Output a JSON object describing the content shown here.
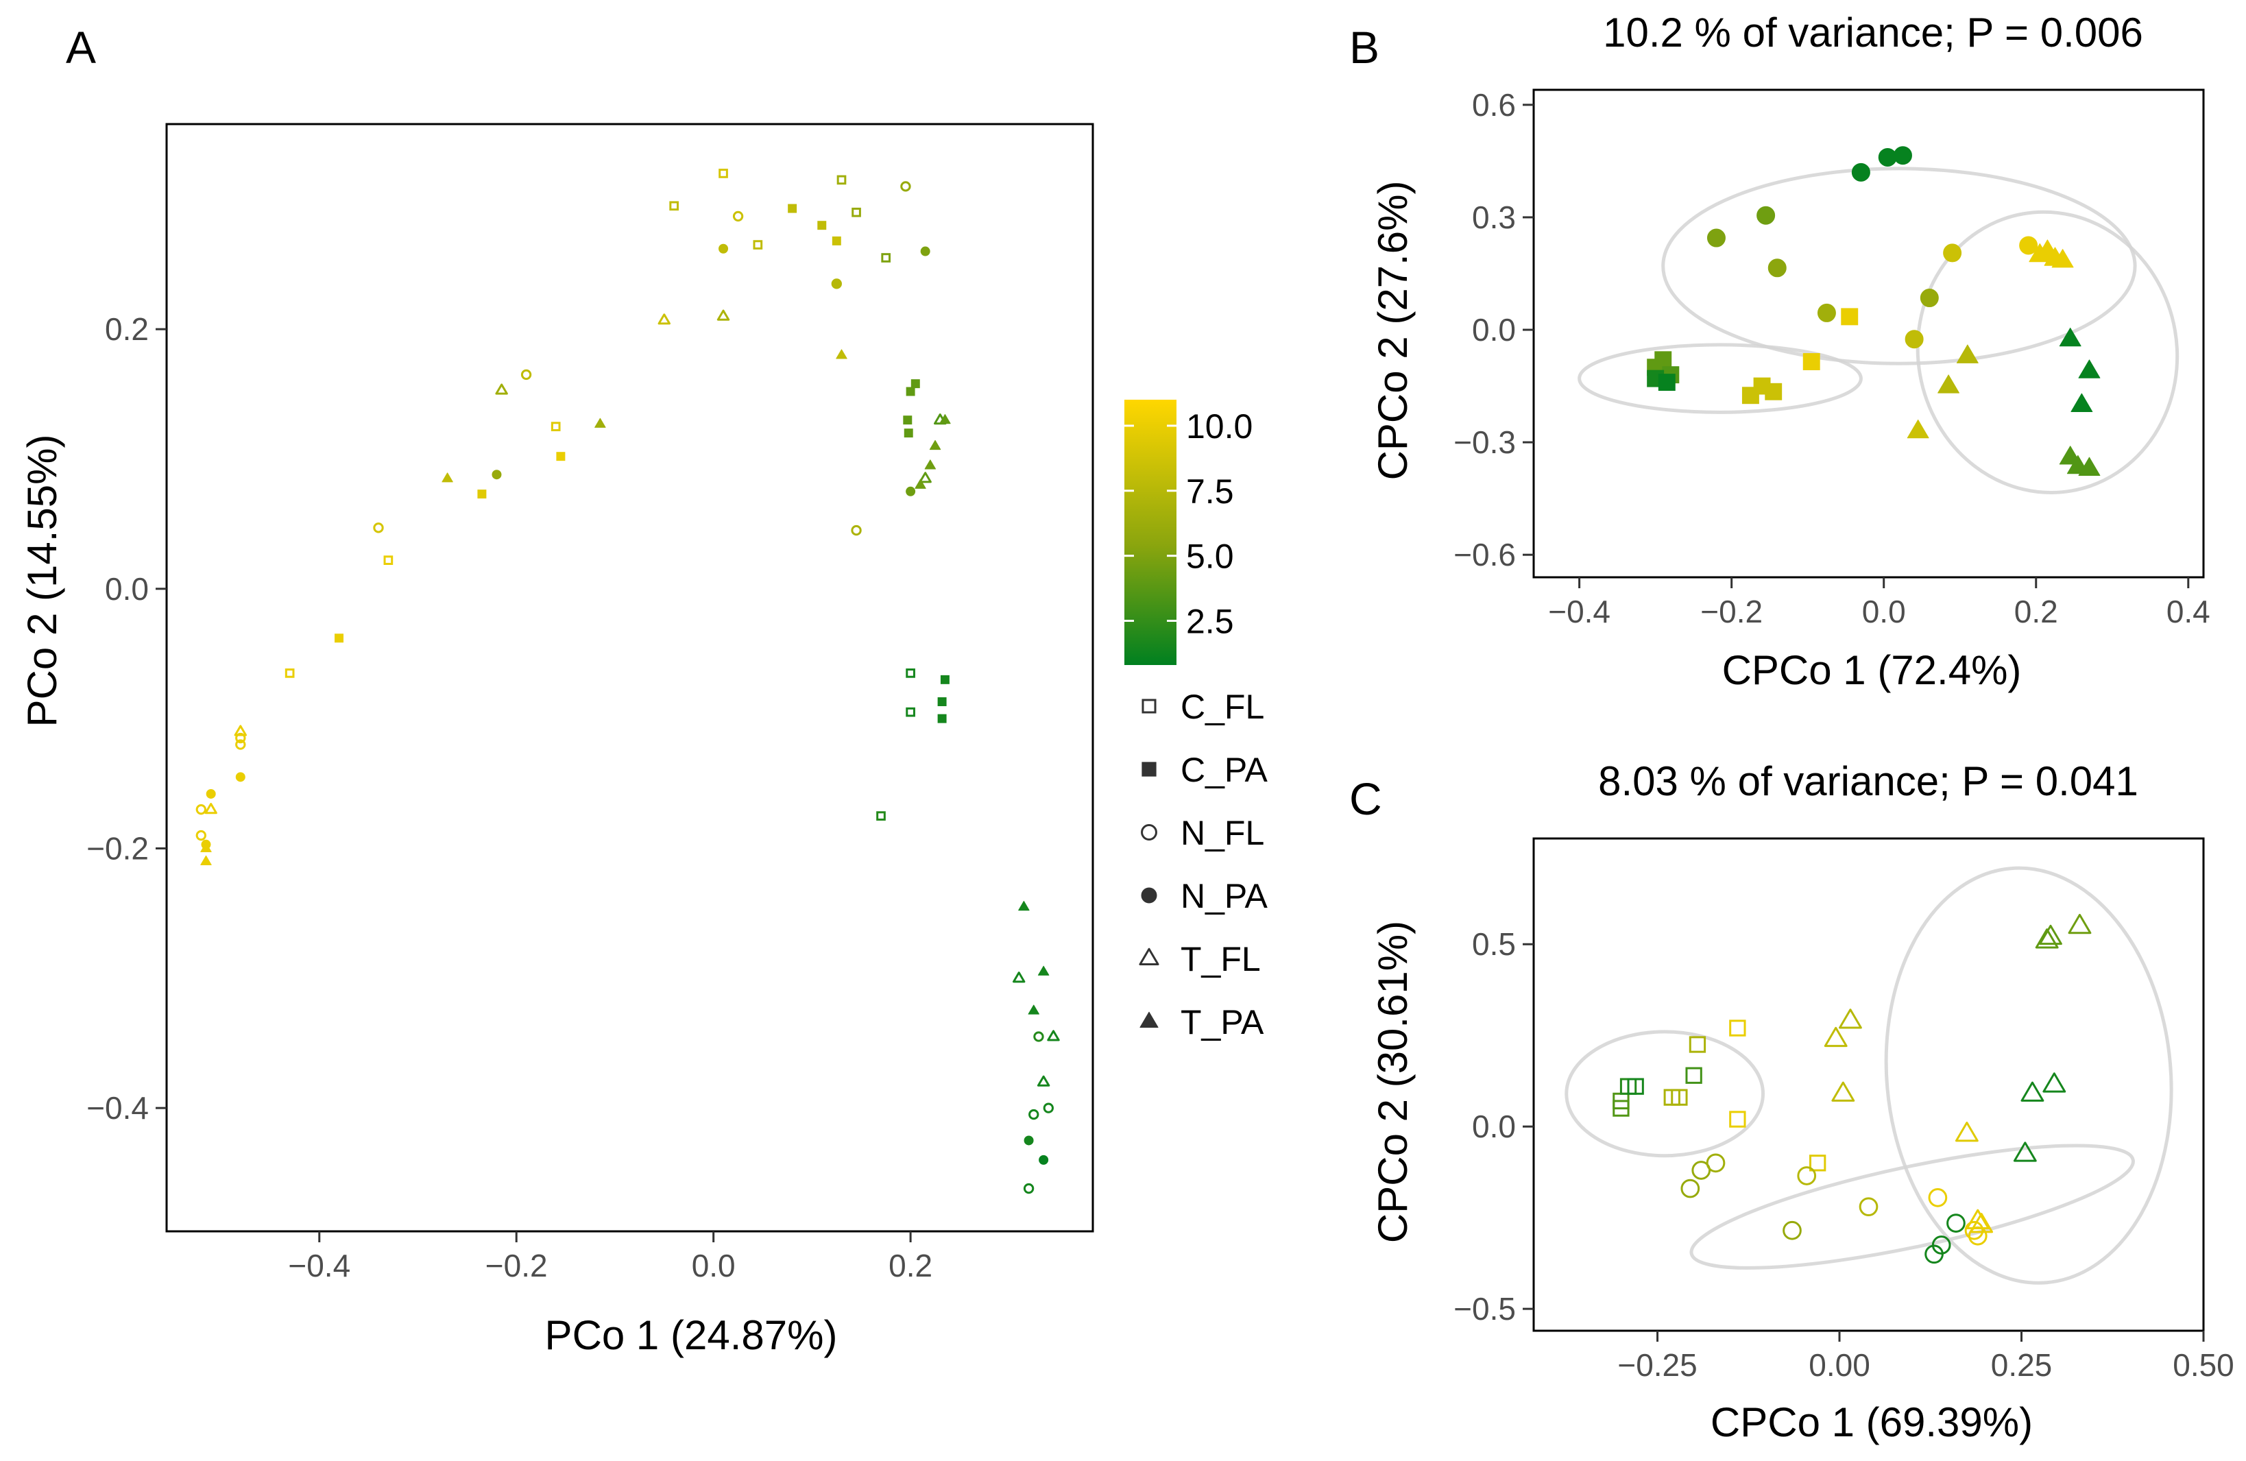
{
  "chart_data": [
    {
      "panel": "A",
      "type": "scatter",
      "title": "",
      "xlabel": "PCo 1 (24.87%)",
      "ylabel": "PCo 2 (14.55%)",
      "xlim": [
        -0.555,
        0.385
      ],
      "ylim": [
        -0.495,
        0.358
      ],
      "xticks": [
        -0.4,
        -0.2,
        0.0,
        0.2
      ],
      "xtick_labels": [
        "−0.4",
        "−0.2",
        "0.0",
        "0.2"
      ],
      "yticks": [
        0.2,
        0.0,
        -0.2,
        -0.4
      ],
      "ytick_labels": [
        "0.2",
        "0.0",
        "−0.2",
        "−0.4"
      ],
      "points": [
        {
          "x": 0.01,
          "y": 0.32,
          "g": "C_FL",
          "c": 9
        },
        {
          "x": 0.13,
          "y": 0.315,
          "g": "C_FL",
          "c": 6.5
        },
        {
          "x": -0.04,
          "y": 0.295,
          "g": "C_FL",
          "c": 8
        },
        {
          "x": 0.145,
          "y": 0.29,
          "g": "C_FL",
          "c": 6
        },
        {
          "x": 0.045,
          "y": 0.265,
          "g": "C_FL",
          "c": 8
        },
        {
          "x": 0.175,
          "y": 0.255,
          "g": "C_FL",
          "c": 5
        },
        {
          "x": -0.16,
          "y": 0.125,
          "g": "C_FL",
          "c": 9.5
        },
        {
          "x": -0.33,
          "y": 0.022,
          "g": "C_FL",
          "c": 10
        },
        {
          "x": -0.43,
          "y": -0.065,
          "g": "C_FL",
          "c": 10
        },
        {
          "x": 0.2,
          "y": -0.065,
          "g": "C_FL",
          "c": 1.5
        },
        {
          "x": 0.2,
          "y": -0.095,
          "g": "C_FL",
          "c": 1.5
        },
        {
          "x": 0.17,
          "y": -0.175,
          "g": "C_FL",
          "c": 2
        },
        {
          "x": 0.08,
          "y": 0.293,
          "g": "C_PA",
          "c": 8
        },
        {
          "x": 0.11,
          "y": 0.28,
          "g": "C_PA",
          "c": 8
        },
        {
          "x": 0.125,
          "y": 0.268,
          "g": "C_PA",
          "c": 8.5
        },
        {
          "x": 0.205,
          "y": 0.158,
          "g": "C_PA",
          "c": 4
        },
        {
          "x": 0.2,
          "y": 0.152,
          "g": "C_PA",
          "c": 4
        },
        {
          "x": 0.197,
          "y": 0.13,
          "g": "C_PA",
          "c": 4
        },
        {
          "x": 0.198,
          "y": 0.12,
          "g": "C_PA",
          "c": 4
        },
        {
          "x": -0.155,
          "y": 0.102,
          "g": "C_PA",
          "c": 10
        },
        {
          "x": -0.235,
          "y": 0.073,
          "g": "C_PA",
          "c": 9.5
        },
        {
          "x": -0.38,
          "y": -0.038,
          "g": "C_PA",
          "c": 10
        },
        {
          "x": 0.235,
          "y": -0.07,
          "g": "C_PA",
          "c": 1.5
        },
        {
          "x": 0.232,
          "y": -0.087,
          "g": "C_PA",
          "c": 1.5
        },
        {
          "x": 0.232,
          "y": -0.1,
          "g": "C_PA",
          "c": 1.5
        },
        {
          "x": 0.195,
          "y": 0.31,
          "g": "N_FL",
          "c": 6
        },
        {
          "x": 0.025,
          "y": 0.287,
          "g": "N_FL",
          "c": 8.5
        },
        {
          "x": 0.125,
          "y": 0.235,
          "g": "N_FL",
          "c": 7.5
        },
        {
          "x": -0.19,
          "y": 0.165,
          "g": "N_FL",
          "c": 8
        },
        {
          "x": -0.34,
          "y": 0.047,
          "g": "N_FL",
          "c": 9
        },
        {
          "x": 0.145,
          "y": 0.045,
          "g": "N_FL",
          "c": 7
        },
        {
          "x": -0.48,
          "y": -0.115,
          "g": "N_FL",
          "c": 10
        },
        {
          "x": -0.48,
          "y": -0.12,
          "g": "N_FL",
          "c": 10
        },
        {
          "x": -0.52,
          "y": -0.17,
          "g": "N_FL",
          "c": 10
        },
        {
          "x": -0.52,
          "y": -0.19,
          "g": "N_FL",
          "c": 10
        },
        {
          "x": 0.33,
          "y": -0.345,
          "g": "N_FL",
          "c": 2
        },
        {
          "x": 0.34,
          "y": -0.4,
          "g": "N_FL",
          "c": 1.5
        },
        {
          "x": 0.325,
          "y": -0.405,
          "g": "N_FL",
          "c": 1.5
        },
        {
          "x": 0.32,
          "y": -0.462,
          "g": "N_FL",
          "c": 1.5
        },
        {
          "x": 0.01,
          "y": 0.262,
          "g": "N_PA",
          "c": 8
        },
        {
          "x": 0.215,
          "y": 0.26,
          "g": "N_PA",
          "c": 5
        },
        {
          "x": 0.125,
          "y": 0.235,
          "g": "N_PA",
          "c": 7.5
        },
        {
          "x": -0.22,
          "y": 0.088,
          "g": "N_PA",
          "c": 6
        },
        {
          "x": 0.2,
          "y": 0.075,
          "g": "N_PA",
          "c": 4.5
        },
        {
          "x": -0.48,
          "y": -0.145,
          "g": "N_PA",
          "c": 10
        },
        {
          "x": -0.51,
          "y": -0.158,
          "g": "N_PA",
          "c": 10
        },
        {
          "x": -0.515,
          "y": -0.197,
          "g": "N_PA",
          "c": 10
        },
        {
          "x": 0.32,
          "y": -0.425,
          "g": "N_PA",
          "c": 1.5
        },
        {
          "x": 0.335,
          "y": -0.44,
          "g": "N_PA",
          "c": 1
        },
        {
          "x": -0.05,
          "y": 0.207,
          "g": "T_FL",
          "c": 8.5
        },
        {
          "x": 0.01,
          "y": 0.21,
          "g": "T_FL",
          "c": 7
        },
        {
          "x": -0.215,
          "y": 0.153,
          "g": "T_FL",
          "c": 6.5
        },
        {
          "x": 0.23,
          "y": 0.13,
          "g": "T_FL",
          "c": 3.5
        },
        {
          "x": 0.215,
          "y": 0.085,
          "g": "T_FL",
          "c": 4
        },
        {
          "x": -0.48,
          "y": -0.11,
          "g": "T_FL",
          "c": 10
        },
        {
          "x": -0.51,
          "y": -0.17,
          "g": "T_FL",
          "c": 10
        },
        {
          "x": 0.31,
          "y": -0.3,
          "g": "T_FL",
          "c": 1.5
        },
        {
          "x": 0.345,
          "y": -0.345,
          "g": "T_FL",
          "c": 1.5
        },
        {
          "x": 0.335,
          "y": -0.38,
          "g": "T_FL",
          "c": 1.5
        },
        {
          "x": 0.13,
          "y": 0.18,
          "g": "T_PA",
          "c": 8
        },
        {
          "x": 0.235,
          "y": 0.13,
          "g": "T_PA",
          "c": 4
        },
        {
          "x": -0.115,
          "y": 0.127,
          "g": "T_PA",
          "c": 6.5
        },
        {
          "x": 0.225,
          "y": 0.11,
          "g": "T_PA",
          "c": 4.5
        },
        {
          "x": 0.22,
          "y": 0.095,
          "g": "T_PA",
          "c": 4.5
        },
        {
          "x": -0.27,
          "y": 0.085,
          "g": "T_PA",
          "c": 8
        },
        {
          "x": 0.21,
          "y": 0.08,
          "g": "T_PA",
          "c": 4.5
        },
        {
          "x": -0.515,
          "y": -0.2,
          "g": "T_PA",
          "c": 10
        },
        {
          "x": -0.515,
          "y": -0.21,
          "g": "T_PA",
          "c": 10
        },
        {
          "x": 0.315,
          "y": -0.245,
          "g": "T_PA",
          "c": 1.5
        },
        {
          "x": 0.335,
          "y": -0.295,
          "g": "T_PA",
          "c": 1.5
        },
        {
          "x": 0.325,
          "y": -0.325,
          "g": "T_PA",
          "c": 1.5
        }
      ]
    },
    {
      "panel": "B",
      "type": "scatter",
      "title": "10.2 % of variance; P = 0.006",
      "xlabel": "CPCo 1 (72.4%)",
      "ylabel": "CPCo 2 (27.6%)",
      "xlim": [
        -0.46,
        0.42
      ],
      "ylim": [
        -0.66,
        0.64
      ],
      "xticks": [
        -0.4,
        -0.2,
        0.0,
        0.2,
        0.4
      ],
      "xtick_labels": [
        "−0.4",
        "−0.2",
        "0.0",
        "0.2",
        "0.4"
      ],
      "yticks": [
        0.6,
        0.3,
        0.0,
        -0.3,
        -0.6
      ],
      "ytick_labels": [
        "0.6",
        "0.3",
        "0.0",
        "−0.3",
        "−0.6"
      ],
      "ellipses": [
        {
          "cx": -0.215,
          "cy": -0.13,
          "rx": 0.185,
          "ry": 0.09,
          "angle": 0
        },
        {
          "cx": 0.02,
          "cy": 0.17,
          "rx": 0.31,
          "ry": 0.26,
          "angle": 0
        },
        {
          "cx": 0.215,
          "cy": -0.06,
          "rx": 0.17,
          "ry": 0.375,
          "angle": -10
        }
      ],
      "points": [
        {
          "x": -0.29,
          "y": -0.08,
          "g": "C_PA",
          "c": 4
        },
        {
          "x": -0.3,
          "y": -0.1,
          "g": "C_PA",
          "c": 4
        },
        {
          "x": -0.28,
          "y": -0.12,
          "g": "C_PA",
          "c": 3.5
        },
        {
          "x": -0.3,
          "y": -0.13,
          "g": "C_PA",
          "c": 1.5
        },
        {
          "x": -0.285,
          "y": -0.14,
          "g": "C_PA",
          "c": 1
        },
        {
          "x": -0.16,
          "y": -0.15,
          "g": "C_PA",
          "c": 8.5
        },
        {
          "x": -0.145,
          "y": -0.165,
          "g": "C_PA",
          "c": 8.5
        },
        {
          "x": -0.175,
          "y": -0.175,
          "g": "C_PA",
          "c": 8.5
        },
        {
          "x": -0.095,
          "y": -0.085,
          "g": "C_PA",
          "c": 10
        },
        {
          "x": -0.045,
          "y": 0.035,
          "g": "C_PA",
          "c": 10
        },
        {
          "x": -0.03,
          "y": 0.42,
          "g": "N_PA",
          "c": 1
        },
        {
          "x": 0.005,
          "y": 0.46,
          "g": "N_PA",
          "c": 1
        },
        {
          "x": 0.025,
          "y": 0.465,
          "g": "N_PA",
          "c": 1
        },
        {
          "x": -0.22,
          "y": 0.245,
          "g": "N_PA",
          "c": 5
        },
        {
          "x": -0.155,
          "y": 0.305,
          "g": "N_PA",
          "c": 4.5
        },
        {
          "x": -0.14,
          "y": 0.165,
          "g": "N_PA",
          "c": 5.5
        },
        {
          "x": -0.075,
          "y": 0.045,
          "g": "N_PA",
          "c": 6.5
        },
        {
          "x": 0.06,
          "y": 0.085,
          "g": "N_PA",
          "c": 6
        },
        {
          "x": 0.09,
          "y": 0.205,
          "g": "N_PA",
          "c": 8.5
        },
        {
          "x": 0.04,
          "y": -0.025,
          "g": "N_PA",
          "c": 8
        },
        {
          "x": 0.19,
          "y": 0.225,
          "g": "N_PA",
          "c": 10
        },
        {
          "x": 0.205,
          "y": 0.2,
          "g": "T_PA",
          "c": 10
        },
        {
          "x": 0.215,
          "y": 0.21,
          "g": "T_PA",
          "c": 10
        },
        {
          "x": 0.225,
          "y": 0.19,
          "g": "T_PA",
          "c": 10
        },
        {
          "x": 0.235,
          "y": 0.185,
          "g": "T_PA",
          "c": 10
        },
        {
          "x": 0.11,
          "y": -0.07,
          "g": "T_PA",
          "c": 7.5
        },
        {
          "x": 0.085,
          "y": -0.15,
          "g": "T_PA",
          "c": 7.5
        },
        {
          "x": 0.045,
          "y": -0.27,
          "g": "T_PA",
          "c": 8.5
        },
        {
          "x": 0.245,
          "y": -0.025,
          "g": "T_PA",
          "c": 1
        },
        {
          "x": 0.27,
          "y": -0.11,
          "g": "T_PA",
          "c": 1
        },
        {
          "x": 0.26,
          "y": -0.2,
          "g": "T_PA",
          "c": 1
        },
        {
          "x": 0.245,
          "y": -0.34,
          "g": "T_PA",
          "c": 3.5
        },
        {
          "x": 0.255,
          "y": -0.365,
          "g": "T_PA",
          "c": 3.5
        },
        {
          "x": 0.27,
          "y": -0.37,
          "g": "T_PA",
          "c": 3.5
        }
      ]
    },
    {
      "panel": "C",
      "type": "scatter",
      "title": "8.03 % of variance; P = 0.041",
      "xlabel": "CPCo 1 (69.39%)",
      "ylabel": "CPCo 2 (30.61%)",
      "xlim": [
        -0.42,
        0.5
      ],
      "ylim": [
        -0.56,
        0.79
      ],
      "xticks": [
        -0.25,
        0.0,
        0.25,
        0.5
      ],
      "xtick_labels": [
        "−0.25",
        "0.00",
        "0.25",
        "0.50"
      ],
      "yticks": [
        0.5,
        0.0,
        -0.5
      ],
      "ytick_labels": [
        "0.5",
        "0.0",
        "−0.5"
      ],
      "ellipses": [
        {
          "cx": -0.24,
          "cy": 0.09,
          "rx": 0.135,
          "ry": 0.17,
          "angle": 0
        },
        {
          "cx": 0.1,
          "cy": -0.22,
          "rx": 0.31,
          "ry": 0.11,
          "angle": -12
        },
        {
          "cx": 0.26,
          "cy": 0.14,
          "rx": 0.195,
          "ry": 0.57,
          "angle": -5
        }
      ],
      "points": [
        {
          "x": -0.3,
          "y": 0.05,
          "g": "C_FL",
          "c": 3.5
        },
        {
          "x": -0.3,
          "y": 0.07,
          "g": "C_FL",
          "c": 3.5
        },
        {
          "x": -0.29,
          "y": 0.11,
          "g": "C_FL",
          "c": 2
        },
        {
          "x": -0.28,
          "y": 0.11,
          "g": "C_FL",
          "c": 1.5
        },
        {
          "x": -0.23,
          "y": 0.08,
          "g": "C_FL",
          "c": 7
        },
        {
          "x": -0.22,
          "y": 0.08,
          "g": "C_FL",
          "c": 7
        },
        {
          "x": -0.2,
          "y": 0.14,
          "g": "C_FL",
          "c": 3
        },
        {
          "x": -0.195,
          "y": 0.225,
          "g": "C_FL",
          "c": 7
        },
        {
          "x": -0.14,
          "y": 0.27,
          "g": "C_FL",
          "c": 10
        },
        {
          "x": -0.14,
          "y": 0.02,
          "g": "C_FL",
          "c": 10
        },
        {
          "x": -0.03,
          "y": -0.1,
          "g": "C_FL",
          "c": 9.5
        },
        {
          "x": -0.205,
          "y": -0.17,
          "g": "N_FL",
          "c": 6
        },
        {
          "x": -0.19,
          "y": -0.12,
          "g": "N_FL",
          "c": 6
        },
        {
          "x": -0.17,
          "y": -0.1,
          "g": "N_FL",
          "c": 6.5
        },
        {
          "x": -0.065,
          "y": -0.285,
          "g": "N_FL",
          "c": 6
        },
        {
          "x": -0.045,
          "y": -0.135,
          "g": "N_FL",
          "c": 7.5
        },
        {
          "x": 0.04,
          "y": -0.22,
          "g": "N_FL",
          "c": 7.5
        },
        {
          "x": 0.13,
          "y": -0.35,
          "g": "N_FL",
          "c": 1.5
        },
        {
          "x": 0.14,
          "y": -0.325,
          "g": "N_FL",
          "c": 1.5
        },
        {
          "x": 0.16,
          "y": -0.265,
          "g": "N_FL",
          "c": 1.5
        },
        {
          "x": 0.135,
          "y": -0.195,
          "g": "N_FL",
          "c": 10
        },
        {
          "x": 0.19,
          "y": -0.3,
          "g": "N_FL",
          "c": 10
        },
        {
          "x": 0.185,
          "y": -0.285,
          "g": "N_FL",
          "c": 10
        },
        {
          "x": -0.005,
          "y": 0.24,
          "g": "T_FL",
          "c": 8
        },
        {
          "x": 0.015,
          "y": 0.29,
          "g": "T_FL",
          "c": 7.5
        },
        {
          "x": 0.005,
          "y": 0.09,
          "g": "T_FL",
          "c": 8
        },
        {
          "x": 0.175,
          "y": -0.02,
          "g": "T_FL",
          "c": 9.5
        },
        {
          "x": 0.19,
          "y": -0.26,
          "g": "T_FL",
          "c": 10
        },
        {
          "x": 0.195,
          "y": -0.27,
          "g": "T_FL",
          "c": 10
        },
        {
          "x": 0.285,
          "y": 0.51,
          "g": "T_FL",
          "c": 4
        },
        {
          "x": 0.29,
          "y": 0.52,
          "g": "T_FL",
          "c": 4
        },
        {
          "x": 0.33,
          "y": 0.55,
          "g": "T_FL",
          "c": 4.5
        },
        {
          "x": 0.265,
          "y": 0.09,
          "g": "T_FL",
          "c": 1.5
        },
        {
          "x": 0.295,
          "y": 0.115,
          "g": "T_FL",
          "c": 1.5
        },
        {
          "x": 0.255,
          "y": -0.075,
          "g": "T_FL",
          "c": 1.5
        }
      ]
    }
  ],
  "panels": {
    "a_letter": "A",
    "b_letter": "B",
    "c_letter": "C"
  },
  "colorbar": {
    "min": 0.8,
    "max": 11,
    "ticks": [
      10.0,
      7.5,
      5.0,
      2.5
    ],
    "tick_labels": [
      "10.0",
      "7.5",
      "5.0",
      "2.5"
    ],
    "low_color": "#008020",
    "mid_color": "#8aa50e",
    "high_color": "#ffd700"
  },
  "legend": {
    "items": [
      {
        "label": "C_FL",
        "shape": "square-open"
      },
      {
        "label": "C_PA",
        "shape": "square-filled"
      },
      {
        "label": "N_FL",
        "shape": "circle-open"
      },
      {
        "label": "N_PA",
        "shape": "circle-filled"
      },
      {
        "label": "T_FL",
        "shape": "triangle-open"
      },
      {
        "label": "T_PA",
        "shape": "triangle-filled"
      }
    ],
    "color": "#333333"
  }
}
